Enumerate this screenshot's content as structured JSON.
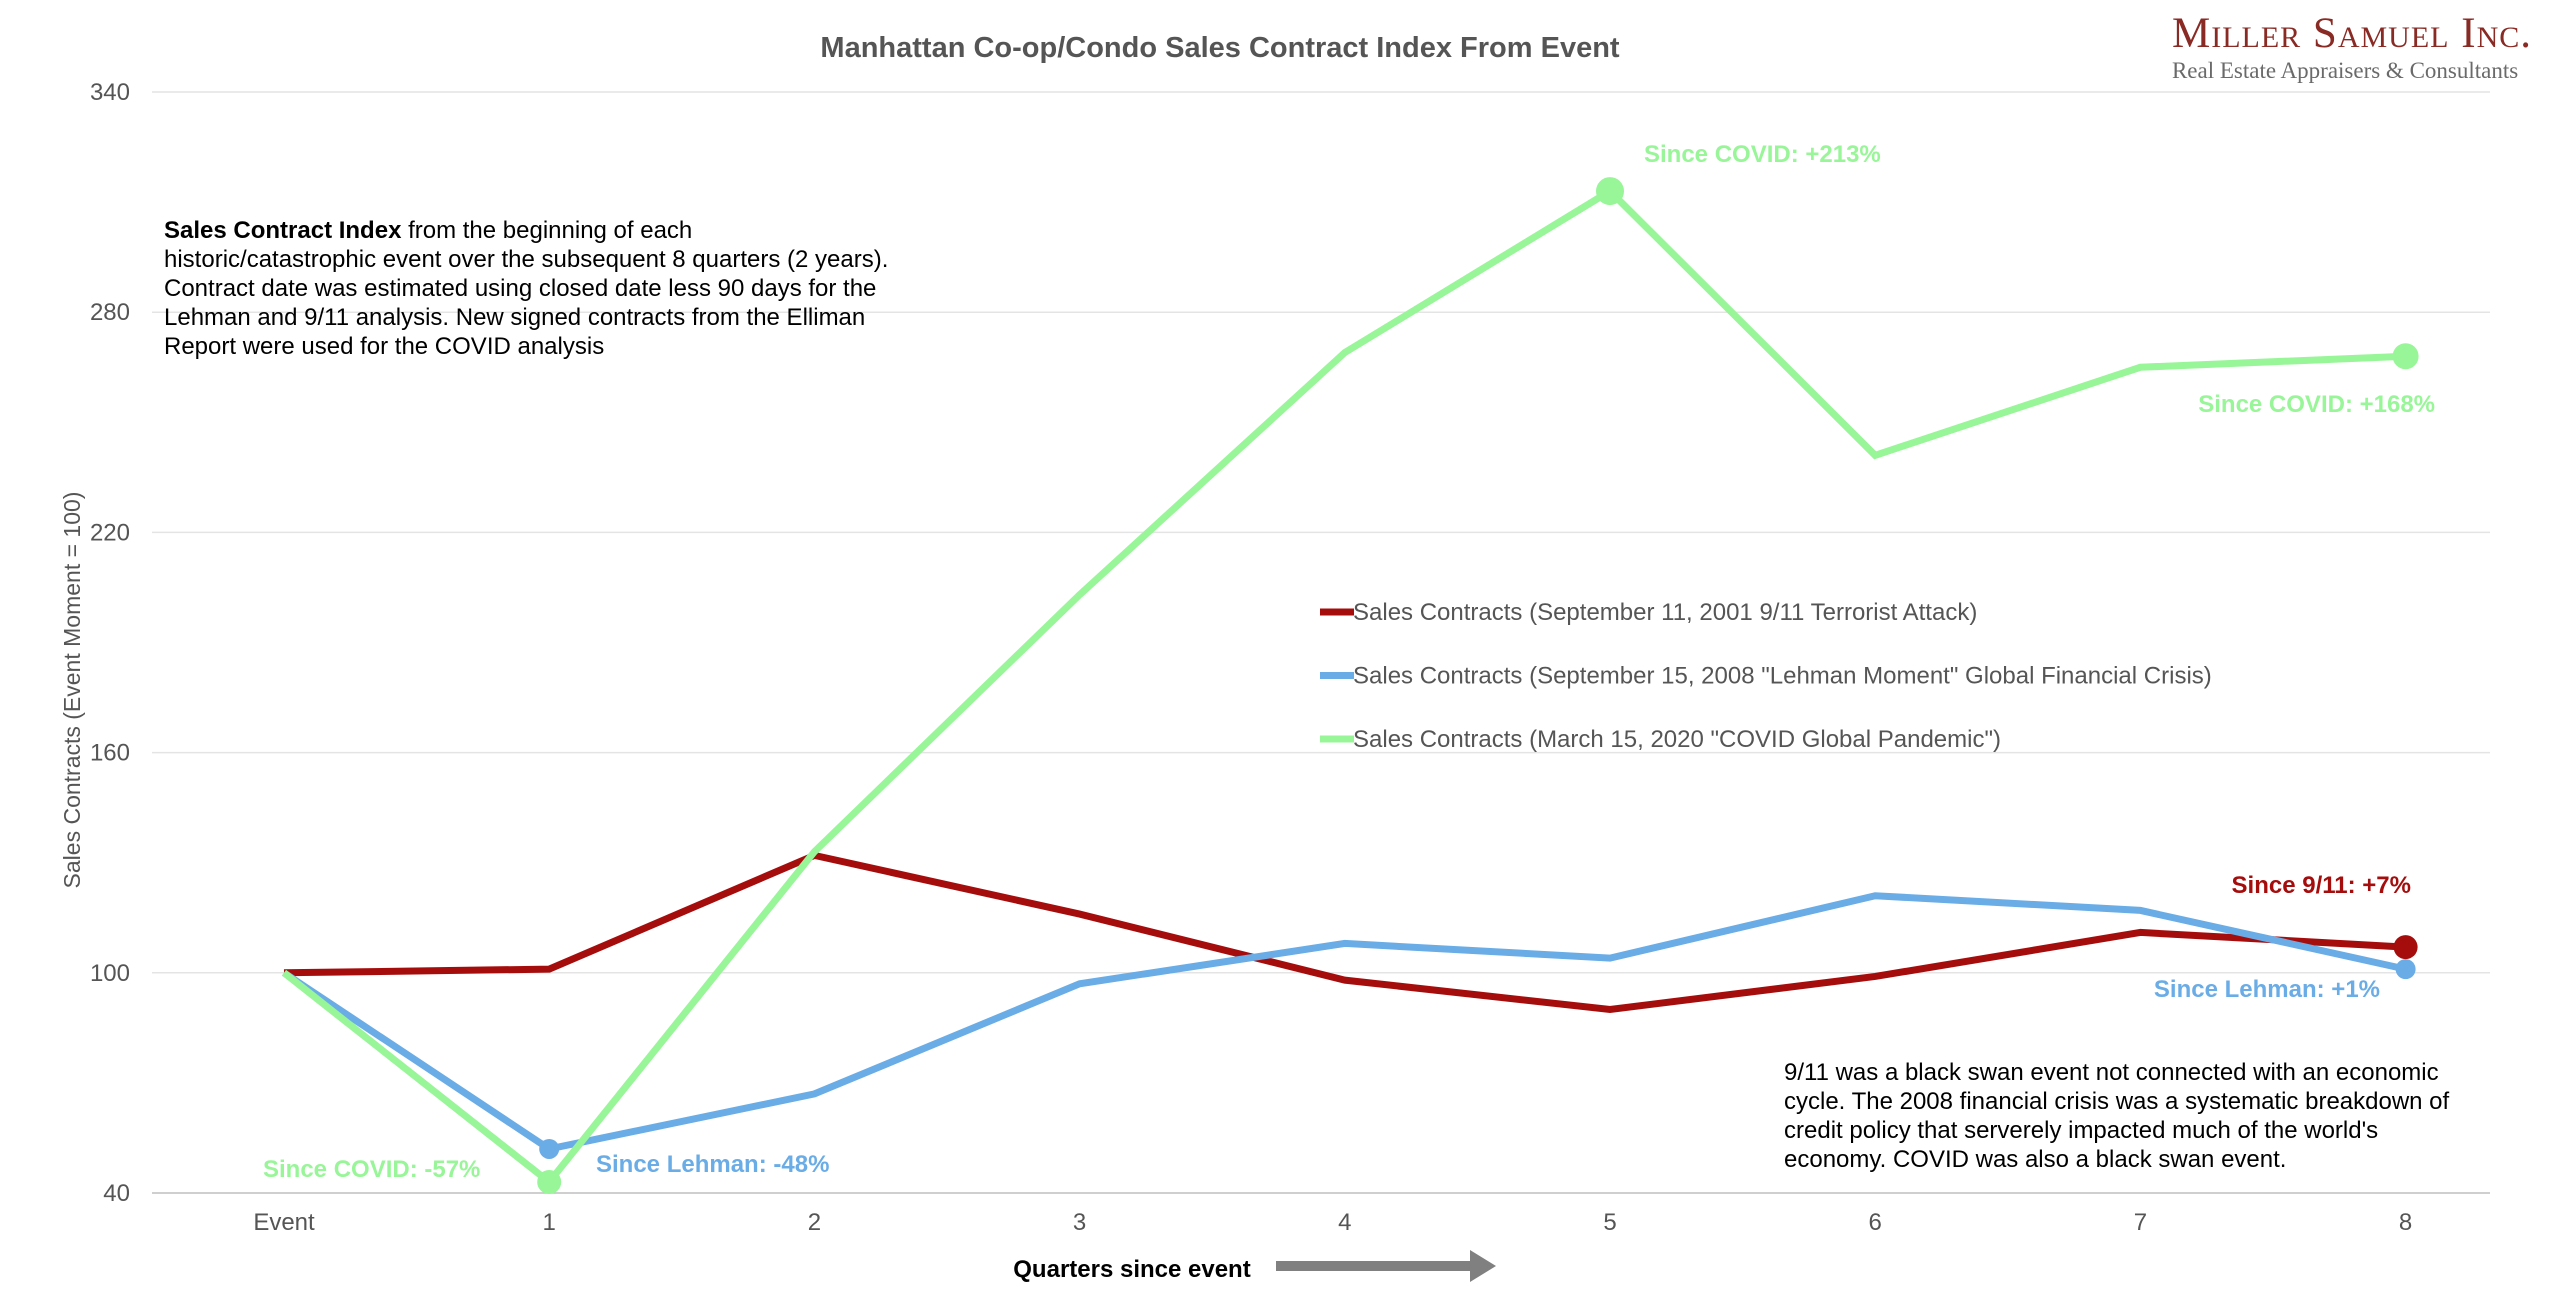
{
  "chart_data": {
    "type": "line",
    "title": "Manhattan Co-op/Condo Sales Contract Index From Event",
    "xlabel": "Quarters since event",
    "ylabel": "Sales Contracts (Event Moment = 100)",
    "categories": [
      "Event",
      "1",
      "2",
      "3",
      "4",
      "5",
      "6",
      "7",
      "8"
    ],
    "ylim": [
      40,
      340
    ],
    "yticks": [
      40,
      100,
      160,
      220,
      280,
      340
    ],
    "grid": "horizontal",
    "legend_position": "center-right",
    "series": [
      {
        "name": "Sales Contracts (September 11, 2001 9/11 Terrorist Attack)",
        "color": "#a50d0d",
        "values": [
          100,
          101,
          132,
          116,
          98,
          90,
          99,
          111,
          107
        ]
      },
      {
        "name": "Sales Contracts (September 15, 2008 \"Lehman Moment\" Global Financial Crisis)",
        "color": "#6aace6",
        "values": [
          100,
          52,
          67,
          97,
          108,
          104,
          121,
          117,
          101
        ]
      },
      {
        "name": "Sales Contracts (March 15, 2020 \"COVID Global Pandemic\")",
        "color": "#98f598",
        "values": [
          100,
          43,
          133,
          203,
          269,
          313,
          241,
          265,
          268
        ]
      }
    ],
    "annotations": [
      {
        "text": "Since COVID: +213%",
        "series": 2,
        "index": 5,
        "color": "#98f598"
      },
      {
        "text": "Since COVID: +168%",
        "series": 2,
        "index": 8,
        "color": "#98f598"
      },
      {
        "text": "Since COVID: -57%",
        "series": 2,
        "index": 1,
        "color": "#98f598"
      },
      {
        "text": "Since Lehman: -48%",
        "series": 1,
        "index": 1,
        "color": "#6aace6"
      },
      {
        "text": "Since Lehman: +1%",
        "series": 1,
        "index": 8,
        "color": "#6aace6"
      },
      {
        "text": "Since 9/11: +7%",
        "series": 0,
        "index": 8,
        "color": "#a50d0d"
      }
    ]
  },
  "logo": {
    "name": "Miller Samuel Inc.",
    "tagline": "Real Estate Appraisers & Consultants"
  },
  "notes": {
    "top_bold": "Sales Contract Index",
    "top_text": " from the beginning of each historic/catastrophic event over the subsequent 8 quarters (2 years). Contract date was estimated using closed date less 90 days for the Lehman and 9/11 analysis. New signed contracts from the Elliman Report were used for the COVID analysis",
    "bottom_text": "9/11 was a black swan event not connected with an economic cycle.  The 2008 financial crisis was a systematic breakdown of credit policy that serverely impacted much of the world's economy. COVID was also a black swan event."
  }
}
